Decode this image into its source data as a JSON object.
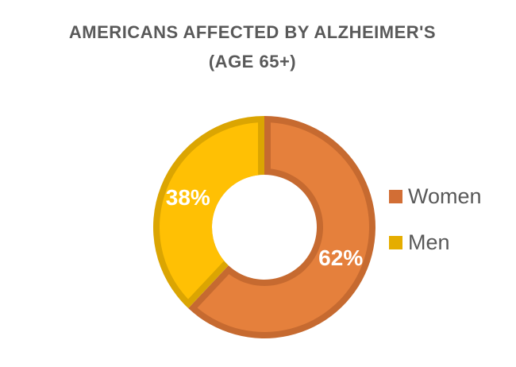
{
  "header": {
    "title_line1": "AMERICANS AFFECTED BY ALZHEIMER'S",
    "title_line2": "(AGE 65+)",
    "title_color": "#595959"
  },
  "legend": {
    "position": "right",
    "items": [
      {
        "label": "Women",
        "color": "#D26E35"
      },
      {
        "label": "Men",
        "color": "#E5AD00"
      }
    ]
  },
  "chart_data": {
    "type": "pie",
    "subtype": "donut",
    "title": "AMERICANS AFFECTED BY ALZHEIMER'S (AGE 65+)",
    "categories": [
      "Women",
      "Men"
    ],
    "values": [
      62,
      38
    ],
    "unit": "percent",
    "data_labels": [
      "62%",
      "38%"
    ],
    "data_label_color": "#FFFFFF",
    "rotation_deg": 0,
    "direction": "clockwise",
    "legend_position": "right",
    "background": "#FFFFFF",
    "slices": [
      {
        "name": "Women",
        "value": 62,
        "fill": "#E5803C",
        "border": "#C66A30",
        "border_edges": "all"
      },
      {
        "name": "Men",
        "value": 38,
        "fill": "#FFC004",
        "border": "#DBA502",
        "border_edges": "no-inner"
      }
    ]
  }
}
